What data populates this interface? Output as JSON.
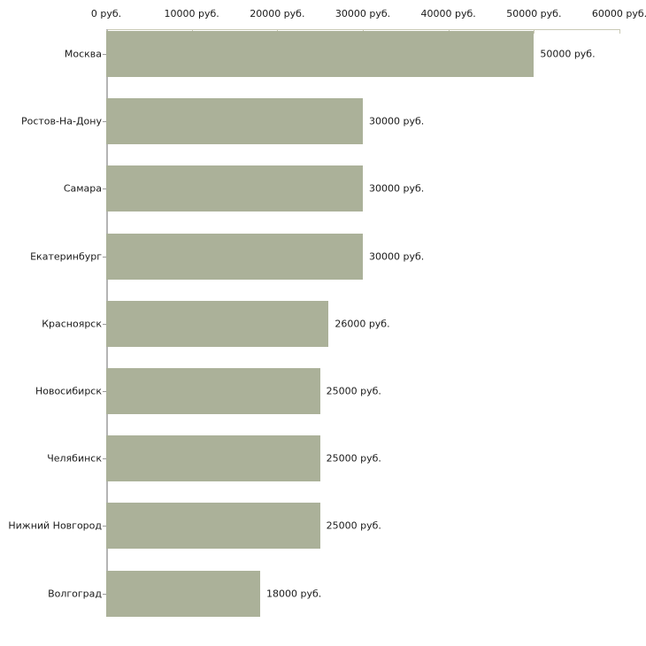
{
  "chart_data": {
    "type": "bar",
    "orientation": "horizontal",
    "title": "",
    "xlabel": "",
    "ylabel": "",
    "unit": "руб.",
    "categories": [
      "Москва",
      "Ростов-На-Дону",
      "Самара",
      "Екатеринбург",
      "Красноярск",
      "Новосибирск",
      "Челябинск",
      "Нижний Новгород",
      "Волгоград"
    ],
    "values": [
      50000,
      30000,
      30000,
      30000,
      26000,
      25000,
      25000,
      25000,
      18000
    ],
    "value_labels": [
      "50000 руб.",
      "30000 руб.",
      "30000 руб.",
      "30000 руб.",
      "26000 руб.",
      "25000 руб.",
      "25000 руб.",
      "25000 руб.",
      "18000 руб."
    ],
    "x_ticks": [
      0,
      10000,
      20000,
      30000,
      40000,
      50000,
      60000
    ],
    "x_tick_labels": [
      "0 руб.",
      "10000 руб.",
      "20000 руб.",
      "30000 руб.",
      "40000 руб.",
      "50000 руб.",
      "60000 руб."
    ],
    "xlim": [
      0,
      60000
    ],
    "x_axis_position": "top",
    "grid": false,
    "legend": false,
    "colors": {
      "bar": "#abb199",
      "axis_line": "#c9c9b5",
      "tick": "#c9c9b5",
      "category_axis_line": "#b4b4b4",
      "category_tick": "#999999",
      "text": "#1a1a1a",
      "background": "#ffffff"
    }
  }
}
